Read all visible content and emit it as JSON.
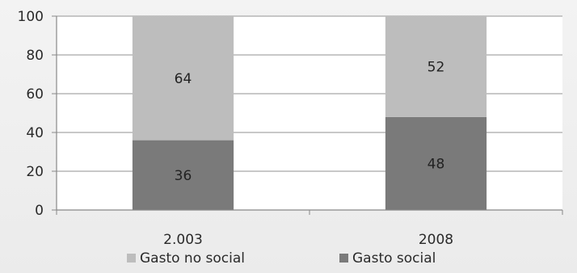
{
  "chart_data": {
    "type": "bar",
    "stacked": true,
    "categories": [
      "2.003",
      "2008"
    ],
    "series": [
      {
        "name": "Gasto social",
        "values": [
          36,
          48
        ],
        "color": "#7a7a7a"
      },
      {
        "name": "Gasto no social",
        "values": [
          64,
          52
        ],
        "color": "#bdbdbd"
      }
    ],
    "ylim": [
      0,
      100
    ],
    "yticks": [
      0,
      20,
      40,
      60,
      80,
      100
    ],
    "grid": true,
    "legend_position": "bottom",
    "legend_order": [
      "Gasto no social",
      "Gasto social"
    ],
    "title": "",
    "xlabel": "",
    "ylabel": ""
  }
}
